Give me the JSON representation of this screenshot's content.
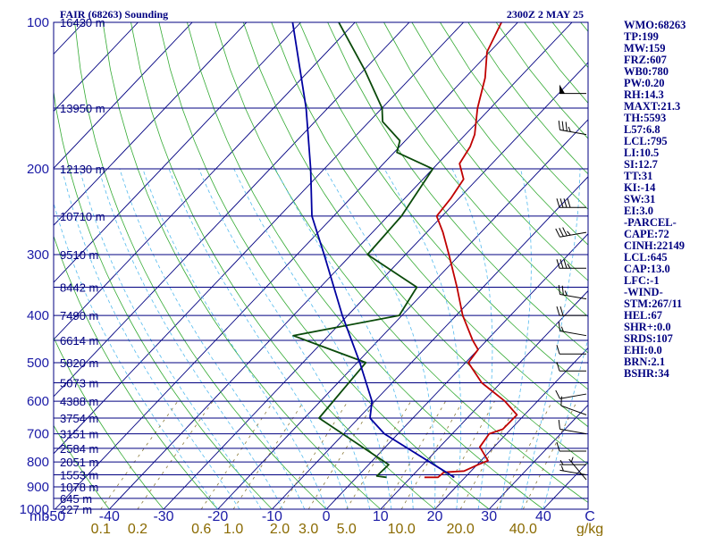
{
  "header": {
    "title": "FAIR (68263) Sounding",
    "time": "2300Z  2 MAY 25"
  },
  "colors": {
    "isobar": "#000080",
    "isotherm": "#000080",
    "dry_adiabat": "#33aa33",
    "moist_adiabat": "#55bbee",
    "mixing_ratio": "#8a7a3a",
    "temperature": "#c00000",
    "dewpoint": "#0a4a0a",
    "parcel": "#0000a0",
    "wind_barb": "#000000",
    "text": "#000080"
  },
  "pressure_labels": [
    "100",
    "200",
    "300",
    "400",
    "500",
    "600",
    "700",
    "800",
    "900",
    "1000"
  ],
  "height_labels": [
    {
      "p": 100,
      "text": "16430 m"
    },
    {
      "p": 150,
      "text": "13950 m"
    },
    {
      "p": 200,
      "text": "12130 m"
    },
    {
      "p": 250,
      "text": "10710 m"
    },
    {
      "p": 300,
      "text": "9510 m"
    },
    {
      "p": 350,
      "text": "8442 m"
    },
    {
      "p": 400,
      "text": "7490 m"
    },
    {
      "p": 450,
      "text": "6614 m"
    },
    {
      "p": 500,
      "text": "5820 m"
    },
    {
      "p": 550,
      "text": "5073 m"
    },
    {
      "p": 600,
      "text": "4388 m"
    },
    {
      "p": 650,
      "text": "3754 m"
    },
    {
      "p": 700,
      "text": "3151 m"
    },
    {
      "p": 750,
      "text": "2584 m"
    },
    {
      "p": 800,
      "text": "2051 m"
    },
    {
      "p": 850,
      "text": "1553 m"
    },
    {
      "p": 900,
      "text": "1078 m"
    },
    {
      "p": 950,
      "text": "645 m"
    },
    {
      "p": 1000,
      "text": "227 m"
    }
  ],
  "temperature_axis": {
    "unit_label": "mb",
    "ticks": [
      "-50",
      "-40",
      "-30",
      "-20",
      "-10",
      "0",
      "10",
      "20",
      "30",
      "40",
      "C"
    ]
  },
  "mixing_ratio_axis": {
    "ticks": [
      "0.1",
      "0.2",
      "0.6",
      "1.0",
      "2.0",
      "3.0",
      "5.0",
      "10.0",
      "20.0",
      "40.0"
    ],
    "unit": "g/kg"
  },
  "indices": [
    "WMO:68263",
    "TP:199",
    "MW:159",
    "FRZ:607",
    "WB0:780",
    "PW:0.20",
    "RH:14.3",
    "MAXT:21.3",
    "TH:5593",
    "L57:6.8",
    "LCL:795",
    "LI:10.5",
    "SI:12.7",
    "TT:31",
    "KI:-14",
    "SW:31",
    "EI:3.0",
    "-PARCEL-",
    "CAPE:72",
    "CINH:22149",
    "LCL:645",
    "CAP:13.0",
    "LFC:-1",
    "-WIND-",
    "STM:267/11",
    "HEL:67",
    "SHR+:0.0",
    "SRDS:107",
    "EHI:0.0",
    "BRN:2.1",
    "BSHR:34"
  ],
  "chart_data": {
    "type": "skew-t",
    "title": "FAIR (68263) Sounding",
    "subtitle": "2300Z  2 MAY 25",
    "xlabel": "C",
    "ylabel": "mb",
    "pressure_range_mb": [
      1000,
      100
    ],
    "temperature_range_c": [
      -50,
      50
    ],
    "series": [
      {
        "name": "temperature",
        "points": [
          {
            "p": 860,
            "t": 12.5
          },
          {
            "p": 860,
            "t": 15.0
          },
          {
            "p": 840,
            "t": 15.2
          },
          {
            "p": 835,
            "t": 18.7
          },
          {
            "p": 810,
            "t": 20.2
          },
          {
            "p": 795,
            "t": 21.3
          },
          {
            "p": 745,
            "t": 17.4
          },
          {
            "p": 700,
            "t": 16.8
          },
          {
            "p": 685,
            "t": 18.5
          },
          {
            "p": 640,
            "t": 18.6
          },
          {
            "p": 600,
            "t": 14.0
          },
          {
            "p": 550,
            "t": 6.5
          },
          {
            "p": 500,
            "t": 0.5
          },
          {
            "p": 470,
            "t": 0.0
          },
          {
            "p": 450,
            "t": -2.6
          },
          {
            "p": 400,
            "t": -8.8
          },
          {
            "p": 350,
            "t": -14.8
          },
          {
            "p": 300,
            "t": -22.0
          },
          {
            "p": 270,
            "t": -27.0
          },
          {
            "p": 250,
            "t": -31.0
          },
          {
            "p": 230,
            "t": -31.5
          },
          {
            "p": 210,
            "t": -32.5
          },
          {
            "p": 195,
            "t": -36.0
          },
          {
            "p": 180,
            "t": -37.0
          },
          {
            "p": 170,
            "t": -38.3
          },
          {
            "p": 150,
            "t": -42.4
          },
          {
            "p": 130,
            "t": -46.3
          },
          {
            "p": 115,
            "t": -50.5
          },
          {
            "p": 100,
            "t": -53.0
          }
        ]
      },
      {
        "name": "dewpoint",
        "points": [
          {
            "p": 860,
            "t": 5.5
          },
          {
            "p": 855,
            "t": 3.5
          },
          {
            "p": 810,
            "t": 3.7
          },
          {
            "p": 650,
            "t": -17.3
          },
          {
            "p": 500,
            "t": -18.4
          },
          {
            "p": 440,
            "t": -36.5
          },
          {
            "p": 400,
            "t": -20.5
          },
          {
            "p": 350,
            "t": -22.2
          },
          {
            "p": 300,
            "t": -37.0
          },
          {
            "p": 250,
            "t": -37.5
          },
          {
            "p": 200,
            "t": -40.0
          },
          {
            "p": 185,
            "t": -49.5
          },
          {
            "p": 175,
            "t": -51.0
          },
          {
            "p": 160,
            "t": -57.5
          },
          {
            "p": 150,
            "t": -60.0
          },
          {
            "p": 125,
            "t": -70.0
          },
          {
            "p": 100,
            "t": -83.0
          }
        ]
      },
      {
        "name": "parcel",
        "points": [
          {
            "p": 860,
            "t": 18.0
          },
          {
            "p": 800,
            "t": 10.8
          },
          {
            "p": 700,
            "t": -2.5
          },
          {
            "p": 650,
            "t": -7.9
          },
          {
            "p": 600,
            "t": -10.5
          },
          {
            "p": 500,
            "t": -19.5
          },
          {
            "p": 400,
            "t": -31.0
          },
          {
            "p": 300,
            "t": -45.0
          },
          {
            "p": 250,
            "t": -54.0
          },
          {
            "p": 200,
            "t": -62.5
          },
          {
            "p": 150,
            "t": -74.0
          },
          {
            "p": 100,
            "t": -91.5
          }
        ]
      }
    ],
    "wind_barbs_kt": [
      {
        "p": 140,
        "dir": 270,
        "spd": 50
      },
      {
        "p": 170,
        "dir": 280,
        "spd": 35
      },
      {
        "p": 240,
        "dir": 270,
        "spd": 40
      },
      {
        "p": 270,
        "dir": 260,
        "spd": 35
      },
      {
        "p": 320,
        "dir": 270,
        "spd": 35
      },
      {
        "p": 370,
        "dir": 280,
        "spd": 25
      },
      {
        "p": 400,
        "dir": 270,
        "spd": 20
      },
      {
        "p": 440,
        "dir": 280,
        "spd": 15
      },
      {
        "p": 480,
        "dir": 270,
        "spd": 10
      },
      {
        "p": 520,
        "dir": 270,
        "spd": 10
      },
      {
        "p": 580,
        "dir": 260,
        "spd": 10
      },
      {
        "p": 640,
        "dir": 290,
        "spd": 10
      },
      {
        "p": 700,
        "dir": 280,
        "spd": 10
      },
      {
        "p": 760,
        "dir": 270,
        "spd": 10
      },
      {
        "p": 810,
        "dir": 270,
        "spd": 5
      },
      {
        "p": 850,
        "dir": 280,
        "spd": 5
      },
      {
        "p": 870,
        "dir": 320,
        "spd": 5
      }
    ]
  }
}
